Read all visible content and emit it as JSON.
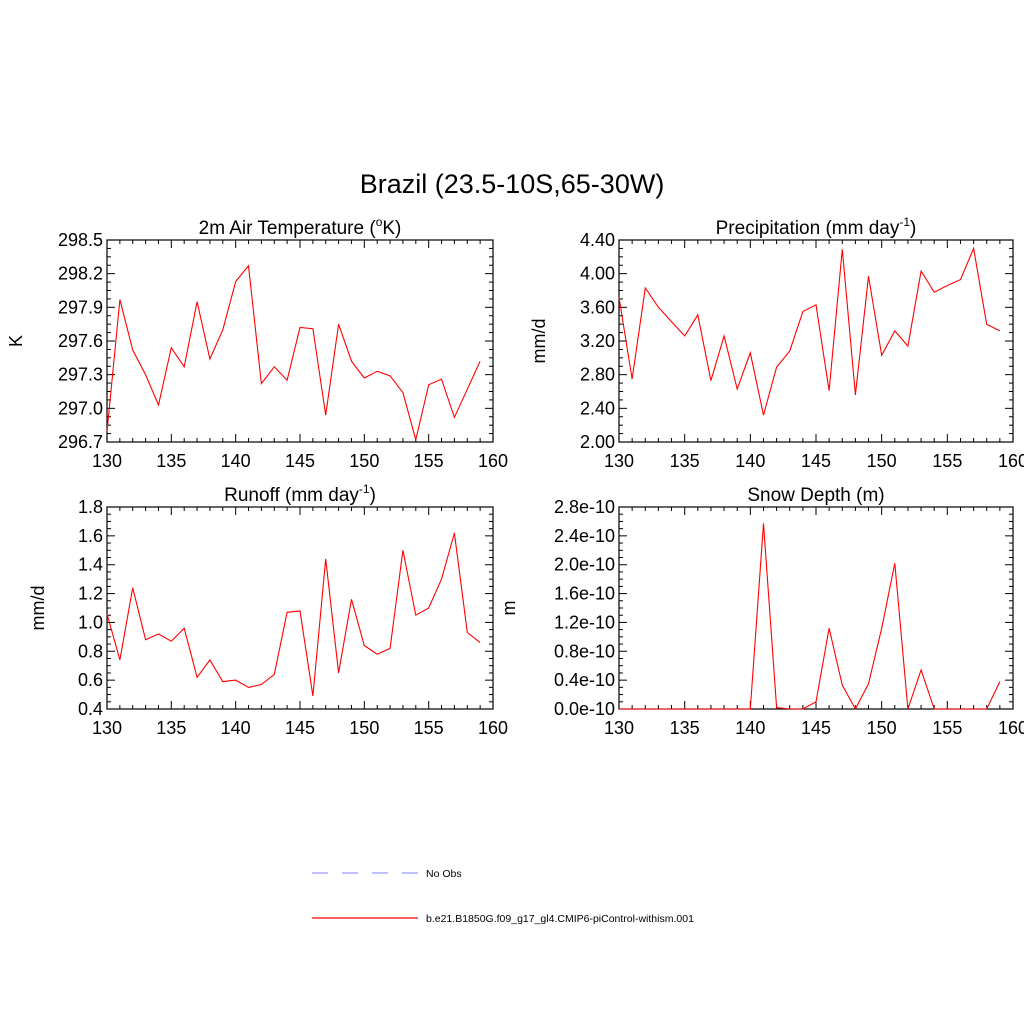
{
  "title": "Brazil (23.5-10S,65-30W)",
  "colors": {
    "model": "#ff0000",
    "obs": "#9999ff"
  },
  "legend": [
    {
      "label": "No Obs",
      "style": "dashed",
      "color": "#9999ff"
    },
    {
      "label": "b.e21.B1850G.f09_g17_gl4.CMIP6-piControl-withism.001",
      "style": "solid",
      "color": "#ff0000"
    }
  ],
  "chart_data": [
    {
      "type": "line",
      "title_main": "2m Air Temperature (",
      "title_sup": "o",
      "title_end": "K)",
      "ylabel": "K",
      "xlim": [
        130,
        160
      ],
      "ylim": [
        296.7,
        298.5
      ],
      "xticks": [
        130,
        135,
        140,
        145,
        150,
        155,
        160
      ],
      "xtick_labels": [
        "130",
        "135",
        "140",
        "145",
        "150",
        "155",
        "160"
      ],
      "yticks": [
        296.7,
        297.0,
        297.3,
        297.6,
        297.9,
        298.2,
        298.5
      ],
      "ytick_labels": [
        "296.7",
        "297.0",
        "297.3",
        "297.6",
        "297.9",
        "298.2",
        "298.5"
      ],
      "x": [
        130,
        131,
        132,
        133,
        134,
        135,
        136,
        137,
        138,
        139,
        140,
        141,
        142,
        143,
        144,
        145,
        146,
        147,
        148,
        149,
        150,
        151,
        152,
        153,
        154,
        155,
        156,
        157,
        158,
        159
      ],
      "values": [
        296.79,
        297.97,
        297.52,
        297.3,
        297.03,
        297.54,
        297.37,
        297.95,
        297.44,
        297.7,
        298.13,
        298.27,
        297.22,
        297.37,
        297.25,
        297.72,
        297.71,
        296.94,
        297.75,
        297.42,
        297.27,
        297.33,
        297.29,
        297.14,
        296.72,
        297.21,
        297.26,
        296.92,
        297.17,
        297.42
      ]
    },
    {
      "type": "line",
      "title_main": "Precipitation (mm day",
      "title_sup": "-1",
      "title_end": ")",
      "ylabel": "mm/d",
      "xlim": [
        130,
        160
      ],
      "ylim": [
        2.0,
        4.4
      ],
      "xticks": [
        130,
        135,
        140,
        145,
        150,
        155,
        160
      ],
      "xtick_labels": [
        "130",
        "135",
        "140",
        "145",
        "150",
        "155",
        "160"
      ],
      "yticks": [
        2.0,
        2.4,
        2.8,
        3.2,
        3.6,
        4.0,
        4.4
      ],
      "ytick_labels": [
        "2.00",
        "2.40",
        "2.80",
        "3.20",
        "3.60",
        "4.00",
        "4.40"
      ],
      "x": [
        130,
        131,
        132,
        133,
        134,
        135,
        136,
        137,
        138,
        139,
        140,
        141,
        142,
        143,
        144,
        145,
        146,
        147,
        148,
        149,
        150,
        151,
        152,
        153,
        154,
        155,
        156,
        157,
        158,
        159
      ],
      "values": [
        3.72,
        2.75,
        3.83,
        3.6,
        3.43,
        3.26,
        3.51,
        2.73,
        3.26,
        2.63,
        3.06,
        2.32,
        2.89,
        3.08,
        3.55,
        3.63,
        2.61,
        4.29,
        2.56,
        3.97,
        3.03,
        3.32,
        3.14,
        4.03,
        3.78,
        3.86,
        3.93,
        4.3,
        3.4,
        3.32
      ]
    },
    {
      "type": "line",
      "title_main": "Runoff (mm day",
      "title_sup": "-1",
      "title_end": ")",
      "ylabel": "mm/d",
      "xlim": [
        130,
        160
      ],
      "ylim": [
        0.4,
        1.8
      ],
      "xticks": [
        130,
        135,
        140,
        145,
        150,
        155,
        160
      ],
      "xtick_labels": [
        "130",
        "135",
        "140",
        "145",
        "150",
        "155",
        "160"
      ],
      "yticks": [
        0.4,
        0.6,
        0.8,
        1.0,
        1.2,
        1.4,
        1.6,
        1.8
      ],
      "ytick_labels": [
        "0.4",
        "0.6",
        "0.8",
        "1.0",
        "1.2",
        "1.4",
        "1.6",
        "1.8"
      ],
      "x": [
        130,
        131,
        132,
        133,
        134,
        135,
        136,
        137,
        138,
        139,
        140,
        141,
        142,
        143,
        144,
        145,
        146,
        147,
        148,
        149,
        150,
        151,
        152,
        153,
        154,
        155,
        156,
        157,
        158,
        159
      ],
      "values": [
        1.06,
        0.74,
        1.24,
        0.88,
        0.92,
        0.87,
        0.96,
        0.62,
        0.74,
        0.59,
        0.6,
        0.55,
        0.57,
        0.64,
        1.07,
        1.08,
        0.49,
        1.44,
        0.65,
        1.16,
        0.84,
        0.78,
        0.82,
        1.5,
        1.05,
        1.1,
        1.3,
        1.62,
        0.93,
        0.86
      ]
    },
    {
      "type": "line",
      "title_main": "Snow Depth (m)",
      "title_sup": "",
      "title_end": "",
      "ylabel": "m",
      "xlim": [
        130,
        160
      ],
      "ylim": [
        0.0,
        2.8
      ],
      "yunit": "e-10",
      "xticks": [
        130,
        135,
        140,
        145,
        150,
        155,
        160
      ],
      "xtick_labels": [
        "130",
        "135",
        "140",
        "145",
        "150",
        "155",
        "160"
      ],
      "yticks": [
        0.0,
        0.4,
        0.8,
        1.2,
        1.6,
        2.0,
        2.4,
        2.8
      ],
      "ytick_labels": [
        "0.0e-10",
        "0.4e-10",
        "0.8e-10",
        "1.2e-10",
        "1.6e-10",
        "2.0e-10",
        "2.4e-10",
        "2.8e-10"
      ],
      "x": [
        130,
        131,
        132,
        133,
        134,
        135,
        136,
        137,
        138,
        139,
        140,
        141,
        142,
        143,
        144,
        145,
        146,
        147,
        148,
        149,
        150,
        151,
        152,
        153,
        154,
        155,
        156,
        157,
        158,
        159
      ],
      "values": [
        0,
        0,
        0,
        0,
        0,
        0,
        0,
        0,
        0,
        0,
        0,
        2.57,
        0.02,
        0,
        0,
        0.1,
        1.12,
        0.33,
        0,
        0.35,
        1.12,
        2.02,
        0,
        0.54,
        0,
        0,
        0,
        0,
        0,
        0.38
      ]
    }
  ]
}
